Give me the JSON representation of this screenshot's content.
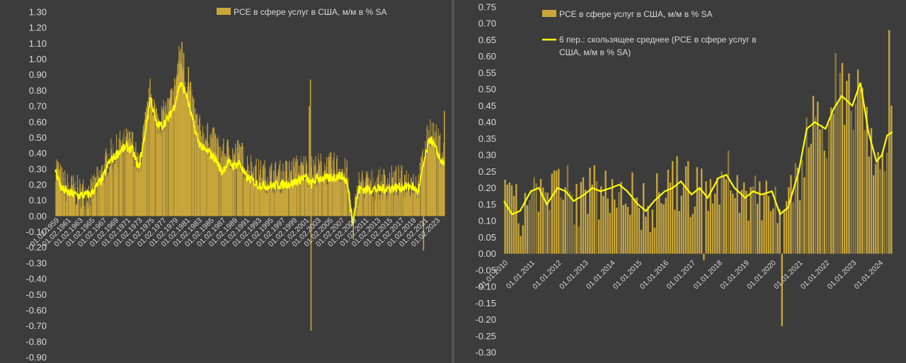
{
  "colors": {
    "bar": "#c9a63a",
    "bar_dark": "#8a7a40",
    "line": "#ffff00",
    "background": "#3c3c3c",
    "text": "#d9d9d9"
  },
  "chart_data": [
    {
      "type": "bar",
      "legend": [
        {
          "name": "PCE в сфере услуг в США, м/м в % SA",
          "style": "bar"
        }
      ],
      "legend_placement": "top",
      "ylim": [
        -0.9,
        1.3
      ],
      "yticks": [
        "1.30",
        "1.20",
        "1.10",
        "1.00",
        "0.90",
        "0.80",
        "0.70",
        "0.60",
        "0.50",
        "0.40",
        "0.30",
        "0.20",
        "0.10",
        "0.00",
        "-0.10",
        "-0.20",
        "-0.30",
        "-0.40",
        "-0.50",
        "-0.60",
        "-0.70",
        "-0.80",
        "-0.90"
      ],
      "xticks": [
        "01.02.1959",
        "01.02.1961",
        "01.02.1963",
        "01.02.1965",
        "01.02.1967",
        "01.02.1969",
        "01.02.1971",
        "01.02.1973",
        "01.02.1975",
        "01.02.1977",
        "01.02.1979",
        "01.02.1981",
        "01.02.1983",
        "01.02.1985",
        "01.02.1987",
        "01.02.1989",
        "01.02.1991",
        "01.02.1993",
        "01.02.1995",
        "01.02.1997",
        "01.02.1999",
        "01.02.2001",
        "01.02.2003",
        "01.02.2005",
        "01.02.2007",
        "01.02.2009",
        "01.02.2011",
        "01.02.2013",
        "01.02.2015",
        "01.02.2017",
        "01.02.2019",
        "01.02.2021",
        "01.02.2023"
      ],
      "x_start_year": 1959,
      "x_end_year": 2024.3,
      "bar_envelope": [
        [
          1959,
          0.33
        ],
        [
          1960,
          0.22
        ],
        [
          1961,
          0.18
        ],
        [
          1963,
          0.15
        ],
        [
          1965,
          0.15
        ],
        [
          1967,
          0.28
        ],
        [
          1968,
          0.38
        ],
        [
          1969,
          0.4
        ],
        [
          1970,
          0.45
        ],
        [
          1971,
          0.46
        ],
        [
          1972,
          0.45
        ],
        [
          1973,
          0.3
        ],
        [
          1974,
          0.55
        ],
        [
          1975,
          0.8
        ],
        [
          1976,
          0.62
        ],
        [
          1977,
          0.62
        ],
        [
          1978,
          0.68
        ],
        [
          1979,
          0.8
        ],
        [
          1980,
          1.05
        ],
        [
          1981,
          0.82
        ],
        [
          1982,
          0.72
        ],
        [
          1983,
          0.55
        ],
        [
          1984,
          0.5
        ],
        [
          1985,
          0.48
        ],
        [
          1986,
          0.45
        ],
        [
          1987,
          0.38
        ],
        [
          1988,
          0.4
        ],
        [
          1989,
          0.38
        ],
        [
          1990,
          0.4
        ],
        [
          1991,
          0.32
        ],
        [
          1992,
          0.3
        ],
        [
          1993,
          0.26
        ],
        [
          1995,
          0.25
        ],
        [
          1997,
          0.25
        ],
        [
          1999,
          0.28
        ],
        [
          2001,
          0.3
        ],
        [
          2002,
          0.28
        ],
        [
          2003,
          0.3
        ],
        [
          2005,
          0.3
        ],
        [
          2007,
          0.3
        ],
        [
          2008,
          0.25
        ],
        [
          2009,
          -0.05
        ],
        [
          2010,
          0.2
        ],
        [
          2013,
          0.2
        ],
        [
          2016,
          0.22
        ],
        [
          2019,
          0.22
        ],
        [
          2020,
          0.2
        ],
        [
          2021,
          0.4
        ],
        [
          2022,
          0.55
        ],
        [
          2023,
          0.48
        ],
        [
          2024,
          0.4
        ]
      ],
      "line_envelope": [
        [
          1959,
          0.3
        ],
        [
          1960,
          0.18
        ],
        [
          1961,
          0.15
        ],
        [
          1963,
          0.13
        ],
        [
          1965,
          0.14
        ],
        [
          1967,
          0.24
        ],
        [
          1968,
          0.34
        ],
        [
          1969,
          0.38
        ],
        [
          1970,
          0.42
        ],
        [
          1971,
          0.44
        ],
        [
          1972,
          0.42
        ],
        [
          1973,
          0.3
        ],
        [
          1974,
          0.5
        ],
        [
          1975,
          0.76
        ],
        [
          1976,
          0.58
        ],
        [
          1977,
          0.58
        ],
        [
          1978,
          0.62
        ],
        [
          1979,
          0.7
        ],
        [
          1980,
          0.85
        ],
        [
          1981,
          0.78
        ],
        [
          1982,
          0.62
        ],
        [
          1983,
          0.48
        ],
        [
          1984,
          0.42
        ],
        [
          1985,
          0.4
        ],
        [
          1986,
          0.36
        ],
        [
          1987,
          0.28
        ],
        [
          1988,
          0.34
        ],
        [
          1989,
          0.32
        ],
        [
          1990,
          0.34
        ],
        [
          1991,
          0.25
        ],
        [
          1992,
          0.23
        ],
        [
          1993,
          0.2
        ],
        [
          1995,
          0.19
        ],
        [
          1997,
          0.2
        ],
        [
          1999,
          0.21
        ],
        [
          2001,
          0.25
        ],
        [
          2002,
          0.2
        ],
        [
          2003,
          0.24
        ],
        [
          2005,
          0.24
        ],
        [
          2007,
          0.26
        ],
        [
          2008,
          0.22
        ],
        [
          2009,
          -0.03
        ],
        [
          2010,
          0.17
        ],
        [
          2013,
          0.17
        ],
        [
          2016,
          0.18
        ],
        [
          2019,
          0.19
        ],
        [
          2020,
          0.15
        ],
        [
          2021,
          0.35
        ],
        [
          2022,
          0.5
        ],
        [
          2023,
          0.42
        ],
        [
          2024,
          0.34
        ]
      ],
      "spikes": [
        [
          1980.2,
          1.11
        ],
        [
          1980.5,
          1.04
        ],
        [
          1981.3,
          0.95
        ],
        [
          2001.8,
          0.87
        ],
        [
          2001.9,
          -0.73
        ],
        [
          2001.6,
          0.7
        ],
        [
          2009.0,
          -0.15
        ],
        [
          2020.8,
          -0.22
        ],
        [
          2024.3,
          0.67
        ]
      ]
    },
    {
      "type": "bar",
      "legend": [
        {
          "name": "PCE в сфере услуг в США, м/м в % SA",
          "style": "bar"
        },
        {
          "name_lines": [
            "6 пер.: скользящее среднее (PCE в сфере услуг в",
            "США, м/м в % SA)"
          ],
          "style": "line"
        }
      ],
      "legend_placement": "top",
      "ylim": [
        -0.3,
        0.75
      ],
      "yticks": [
        "0.75",
        "0.70",
        "0.65",
        "0.60",
        "0.55",
        "0.50",
        "0.45",
        "0.40",
        "0.35",
        "0.30",
        "0.25",
        "0.20",
        "0.15",
        "0.10",
        "0.05",
        "0.00",
        "-0.05",
        "-0.10",
        "-0.15",
        "-0.20",
        "-0.25",
        "-0.30"
      ],
      "xticks": [
        "01.01.2010",
        "01.01.2011",
        "01.01.2012",
        "01.01.2013",
        "01.01.2014",
        "01.01.2015",
        "01.01.2016",
        "01.01.2017",
        "01.01.2018",
        "01.01.2019",
        "01.01.2020",
        "01.01.2021",
        "01.01.2022",
        "01.01.2023",
        "01.01.2024"
      ],
      "x_start": "2010-01",
      "x_end": "2024-06",
      "moving_average_points": [
        [
          2010.0,
          0.16
        ],
        [
          2010.3,
          0.12
        ],
        [
          2010.6,
          0.13
        ],
        [
          2011.0,
          0.19
        ],
        [
          2011.3,
          0.2
        ],
        [
          2011.6,
          0.15
        ],
        [
          2012.0,
          0.2
        ],
        [
          2012.3,
          0.19
        ],
        [
          2012.6,
          0.16
        ],
        [
          2013.0,
          0.18
        ],
        [
          2013.3,
          0.2
        ],
        [
          2013.6,
          0.19
        ],
        [
          2014.0,
          0.2
        ],
        [
          2014.3,
          0.21
        ],
        [
          2014.6,
          0.19
        ],
        [
          2015.0,
          0.15
        ],
        [
          2015.3,
          0.13
        ],
        [
          2015.6,
          0.16
        ],
        [
          2016.0,
          0.19
        ],
        [
          2016.3,
          0.2
        ],
        [
          2016.6,
          0.22
        ],
        [
          2017.0,
          0.18
        ],
        [
          2017.3,
          0.2
        ],
        [
          2017.6,
          0.17
        ],
        [
          2018.0,
          0.23
        ],
        [
          2018.3,
          0.24
        ],
        [
          2018.6,
          0.2
        ],
        [
          2019.0,
          0.17
        ],
        [
          2019.3,
          0.19
        ],
        [
          2019.6,
          0.18
        ],
        [
          2020.0,
          0.19
        ],
        [
          2020.3,
          0.12
        ],
        [
          2020.6,
          0.14
        ],
        [
          2021.0,
          0.25
        ],
        [
          2021.3,
          0.38
        ],
        [
          2021.6,
          0.4
        ],
        [
          2022.0,
          0.38
        ],
        [
          2022.3,
          0.44
        ],
        [
          2022.6,
          0.48
        ],
        [
          2023.0,
          0.45
        ],
        [
          2023.3,
          0.52
        ],
        [
          2023.6,
          0.37
        ],
        [
          2023.9,
          0.28
        ],
        [
          2024.1,
          0.3
        ],
        [
          2024.3,
          0.36
        ],
        [
          2024.5,
          0.37
        ]
      ],
      "notable_bars": [
        [
          2017.4,
          -0.02
        ],
        [
          2020.3,
          -0.22
        ],
        [
          2020.5,
          0.16
        ],
        [
          2021.5,
          0.48
        ],
        [
          2022.3,
          0.61
        ],
        [
          2022.6,
          0.58
        ],
        [
          2023.2,
          0.56
        ],
        [
          2024.3,
          0.68
        ],
        [
          2024.4,
          0.45
        ]
      ]
    }
  ]
}
